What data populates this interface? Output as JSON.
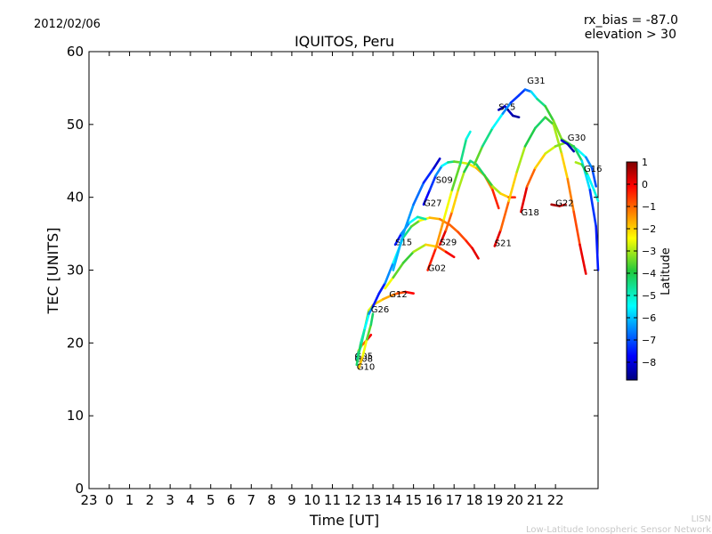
{
  "header": {
    "date": "2012/02/06",
    "rx_bias": "rx_bias = -87.0",
    "elevation": "elevation > 30"
  },
  "footer": {
    "org_short": "LISN",
    "org_full": "Low-Latitude Ionospheric Sensor Network"
  },
  "chart_data": {
    "type": "line",
    "title": "IQUITOS, Peru",
    "xlabel": "Time [UT]",
    "ylabel": "TEC [UNITS]",
    "xlim": [
      11,
      36.1
    ],
    "ylim": [
      0,
      60
    ],
    "x_ticks": [
      {
        "label": "23",
        "x": 11
      },
      {
        "label": "0",
        "x": 12
      },
      {
        "label": "1",
        "x": 13
      },
      {
        "label": "2",
        "x": 14
      },
      {
        "label": "3",
        "x": 15
      },
      {
        "label": "4",
        "x": 16
      },
      {
        "label": "5",
        "x": 17
      },
      {
        "label": "6",
        "x": 18
      },
      {
        "label": "7",
        "x": 19
      },
      {
        "label": "8",
        "x": 20
      },
      {
        "label": "9",
        "x": 21
      },
      {
        "label": "10",
        "x": 22
      },
      {
        "label": "11",
        "x": 23
      },
      {
        "label": "12",
        "x": 24
      },
      {
        "label": "13",
        "x": 25
      },
      {
        "label": "14",
        "x": 26
      },
      {
        "label": "15",
        "x": 27
      },
      {
        "label": "16",
        "x": 28
      },
      {
        "label": "17",
        "x": 29
      },
      {
        "label": "18",
        "x": 30
      },
      {
        "label": "19",
        "x": 31
      },
      {
        "label": "20",
        "x": 32
      },
      {
        "label": "21",
        "x": 33
      },
      {
        "label": "22",
        "x": 34
      }
    ],
    "y_ticks": [
      0,
      10,
      20,
      30,
      40,
      50,
      60
    ],
    "colorbar": {
      "label": "Latitude",
      "range": [
        -8.8,
        1.0
      ],
      "ticks": [
        "1",
        "0",
        "−1",
        "−2",
        "−3",
        "−4",
        "−5",
        "−6",
        "−7",
        "−8"
      ],
      "tick_values": [
        1,
        0,
        -1,
        -2,
        -3,
        -4,
        -5,
        -6,
        -7,
        -8
      ]
    },
    "series": [
      {
        "name": "G05",
        "label_at": [
          24.1,
          17.8
        ],
        "points": [
          [
            24.2,
            17.6,
            -4.5
          ],
          [
            24.3,
            19.0,
            -3.0
          ],
          [
            24.5,
            19.8,
            -1.5
          ],
          [
            24.7,
            20.4,
            -0.5
          ],
          [
            24.9,
            21.1,
            0.5
          ]
        ]
      },
      {
        "name": "G08",
        "label_at": [
          24.1,
          17.4
        ],
        "points": [
          [
            24.2,
            17.8,
            -6.5
          ],
          [
            24.4,
            19.5,
            -5.0
          ],
          [
            24.6,
            22.0,
            -4.0
          ],
          [
            24.8,
            24.5,
            -3.0
          ],
          [
            25.0,
            25.2,
            -2.2
          ],
          [
            25.5,
            26.0,
            -1.8
          ],
          [
            25.9,
            26.5,
            -1.5
          ],
          [
            26.2,
            26.8,
            -1.0
          ],
          [
            26.6,
            27.0,
            -0.5
          ],
          [
            27.0,
            26.8,
            0.3
          ]
        ]
      },
      {
        "name": "G10",
        "label_at": [
          24.2,
          16.3
        ],
        "points": [
          [
            24.3,
            16.5,
            -1.8
          ],
          [
            24.5,
            18.2,
            -2.0
          ],
          [
            24.7,
            20.5,
            -3.0
          ],
          [
            24.9,
            22.5,
            -4.0
          ],
          [
            25.0,
            24.0,
            -4.5
          ]
        ]
      },
      {
        "name": "G26",
        "label_at": [
          24.9,
          24.2
        ],
        "points": [
          [
            24.2,
            17.0,
            -4.0
          ],
          [
            24.4,
            20.0,
            -4.5
          ],
          [
            24.6,
            22.0,
            -5.0
          ],
          [
            24.8,
            24.0,
            -6.0
          ],
          [
            25.0,
            25.0,
            -7.0
          ],
          [
            25.3,
            26.8,
            -8.0
          ],
          [
            25.6,
            28.2,
            -7.0
          ],
          [
            26.0,
            31.0,
            -6.0
          ],
          [
            26.5,
            34.5,
            -5.0
          ],
          [
            26.9,
            36.0,
            -4.0
          ],
          [
            27.3,
            36.8,
            -3.0
          ],
          [
            27.8,
            37.2,
            -2.0
          ],
          [
            28.3,
            37.0,
            -1.5
          ],
          [
            28.8,
            36.2,
            -1.0
          ],
          [
            29.2,
            35.2,
            -1.0
          ],
          [
            29.6,
            34.0,
            -0.5
          ],
          [
            29.9,
            33.0,
            -0.2
          ],
          [
            30.2,
            31.6,
            0.5
          ]
        ]
      },
      {
        "name": "G12",
        "label_at": [
          25.8,
          26.3
        ],
        "points": [
          [
            25.6,
            27.5,
            -2.0
          ],
          [
            26.0,
            29.0,
            -3.0
          ],
          [
            26.5,
            31.0,
            -4.0
          ],
          [
            27.0,
            32.5,
            -3.5
          ],
          [
            27.6,
            33.5,
            -2.5
          ],
          [
            28.2,
            33.2,
            -1.5
          ],
          [
            28.6,
            32.5,
            -0.5
          ],
          [
            29.0,
            31.8,
            0.5
          ]
        ]
      },
      {
        "name": "S15",
        "label_at": [
          26.1,
          33.4
        ],
        "points": [
          [
            26.1,
            33.5,
            -8.0
          ],
          [
            26.4,
            35.0,
            -7.0
          ],
          [
            26.8,
            36.5,
            -6.0
          ],
          [
            27.2,
            37.3,
            -5.0
          ],
          [
            27.6,
            37.0,
            -4.5
          ]
        ]
      },
      {
        "name": "G27",
        "label_at": [
          27.5,
          38.8
        ],
        "points": [
          [
            27.5,
            39.0,
            -8.0
          ],
          [
            27.8,
            41.0,
            -7.5
          ],
          [
            28.1,
            43.0,
            -7.0
          ],
          [
            28.4,
            44.3,
            -6.0
          ],
          [
            28.7,
            44.8,
            -5.0
          ],
          [
            29.0,
            44.9,
            -4.0
          ],
          [
            29.3,
            44.8,
            -3.0
          ],
          [
            29.7,
            44.6,
            -2.5
          ],
          [
            30.1,
            44.0,
            -2.0
          ],
          [
            30.5,
            43.0,
            -1.5
          ],
          [
            30.9,
            41.0,
            -1.0
          ],
          [
            31.2,
            38.5,
            0.2
          ]
        ]
      },
      {
        "name": "S09",
        "label_at": [
          28.1,
          42.0
        ],
        "points": [
          [
            26.0,
            30.0,
            -6.0
          ],
          [
            26.5,
            35.0,
            -6.2
          ],
          [
            27.0,
            39.0,
            -6.5
          ],
          [
            27.5,
            42.0,
            -7.0
          ],
          [
            28.0,
            44.0,
            -7.8
          ],
          [
            28.3,
            45.3,
            -8.5
          ]
        ]
      },
      {
        "name": "S29",
        "label_at": [
          28.3,
          33.4
        ],
        "points": [
          [
            28.3,
            33.5,
            0.8
          ],
          [
            28.6,
            35.5,
            -0.5
          ],
          [
            28.9,
            38.0,
            -1.5
          ],
          [
            29.2,
            41.0,
            -2.5
          ],
          [
            29.5,
            43.5,
            -3.5
          ],
          [
            29.8,
            45.0,
            -4.5
          ],
          [
            30.1,
            44.5,
            -4.5
          ],
          [
            30.5,
            43.0,
            -4.0
          ],
          [
            30.9,
            41.5,
            -3.5
          ],
          [
            31.3,
            40.5,
            -2.5
          ],
          [
            31.7,
            40.0,
            -1.5
          ],
          [
            32.0,
            40.0,
            0.5
          ]
        ]
      },
      {
        "name": "G02",
        "label_at": [
          27.7,
          29.9
        ],
        "points": [
          [
            27.7,
            30.0,
            0.3
          ],
          [
            28.1,
            33.0,
            -1.0
          ],
          [
            28.5,
            37.0,
            -2.0
          ],
          [
            28.9,
            41.0,
            -3.0
          ],
          [
            29.3,
            44.5,
            -4.0
          ],
          [
            29.6,
            48.0,
            -5.0
          ],
          [
            29.8,
            49.0,
            -5.5
          ]
        ]
      },
      {
        "name": "S21",
        "label_at": [
          31.0,
          33.3
        ],
        "points": [
          [
            31.0,
            33.3,
            0.8
          ],
          [
            31.3,
            35.5,
            -0.5
          ],
          [
            31.7,
            39.5,
            -1.5
          ],
          [
            32.1,
            43.5,
            -2.5
          ],
          [
            32.5,
            47.0,
            -3.5
          ],
          [
            33.0,
            49.5,
            -4.5
          ],
          [
            33.5,
            51.0,
            -4.0
          ],
          [
            33.9,
            50.0,
            -3.5
          ],
          [
            34.3,
            46.0,
            -2.5
          ],
          [
            34.6,
            42.5,
            -1.5
          ],
          [
            34.9,
            38.0,
            -1.0
          ],
          [
            35.2,
            33.5,
            -0.5
          ],
          [
            35.5,
            29.5,
            0.7
          ]
        ]
      },
      {
        "name": "S25",
        "label_at": [
          31.2,
          52.0
        ],
        "points": [
          [
            31.2,
            52.0,
            -8.5
          ],
          [
            31.5,
            52.5,
            -8.0
          ],
          [
            31.9,
            51.2,
            -8.5
          ],
          [
            32.2,
            51.0,
            -8.5
          ]
        ]
      },
      {
        "name": "G31",
        "label_at": [
          32.6,
          55.6
        ],
        "points": [
          [
            30.0,
            44.5,
            -3.0
          ],
          [
            30.4,
            47.0,
            -4.0
          ],
          [
            30.9,
            49.5,
            -5.0
          ],
          [
            31.4,
            51.5,
            -6.0
          ],
          [
            31.8,
            53.0,
            -7.0
          ],
          [
            32.2,
            54.0,
            -7.5
          ],
          [
            32.5,
            54.8,
            -7.0
          ],
          [
            32.8,
            54.5,
            -6.5
          ],
          [
            33.1,
            53.5,
            -5.0
          ],
          [
            33.5,
            52.5,
            -4.0
          ],
          [
            33.9,
            50.5,
            -3.5
          ],
          [
            34.3,
            48.0,
            -3.0
          ],
          [
            34.7,
            47.3,
            -4.0
          ],
          [
            35.1,
            46.5,
            -5.0
          ],
          [
            35.5,
            45.5,
            -6.0
          ],
          [
            35.8,
            44.0,
            -7.0
          ],
          [
            36.0,
            41.5,
            -7.0
          ]
        ]
      },
      {
        "name": "G18",
        "label_at": [
          32.3,
          37.5
        ],
        "points": [
          [
            32.3,
            38.0,
            0.8
          ],
          [
            32.6,
            41.5,
            -0.5
          ],
          [
            33.0,
            44.0,
            -1.5
          ],
          [
            33.5,
            46.0,
            -2.5
          ],
          [
            34.0,
            47.0,
            -3.0
          ],
          [
            34.5,
            47.5,
            -3.5
          ],
          [
            34.9,
            47.0,
            -4.0
          ],
          [
            35.3,
            45.0,
            -4.5
          ],
          [
            35.7,
            41.0,
            -7.0
          ],
          [
            36.0,
            36.0,
            -7.5
          ],
          [
            36.1,
            30.0,
            -7.5
          ]
        ]
      },
      {
        "name": "G22",
        "label_at": [
          34.0,
          38.8
        ],
        "points": [
          [
            33.8,
            39.0,
            0.8
          ],
          [
            34.2,
            38.8,
            0.5
          ],
          [
            34.5,
            39.0,
            0.3
          ]
        ]
      },
      {
        "name": "G30",
        "label_at": [
          34.6,
          47.8
        ],
        "points": [
          [
            34.3,
            47.8,
            -8.0
          ],
          [
            34.6,
            47.3,
            -8.3
          ],
          [
            34.9,
            46.3,
            -8.5
          ]
        ]
      },
      {
        "name": "G16",
        "label_at": [
          35.4,
          43.5
        ],
        "points": [
          [
            35.0,
            44.8,
            -2.5
          ],
          [
            35.3,
            44.5,
            -3.5
          ],
          [
            35.6,
            43.0,
            -5.0
          ],
          [
            35.9,
            41.0,
            -6.0
          ],
          [
            36.1,
            39.5,
            -4.5
          ]
        ]
      }
    ]
  }
}
